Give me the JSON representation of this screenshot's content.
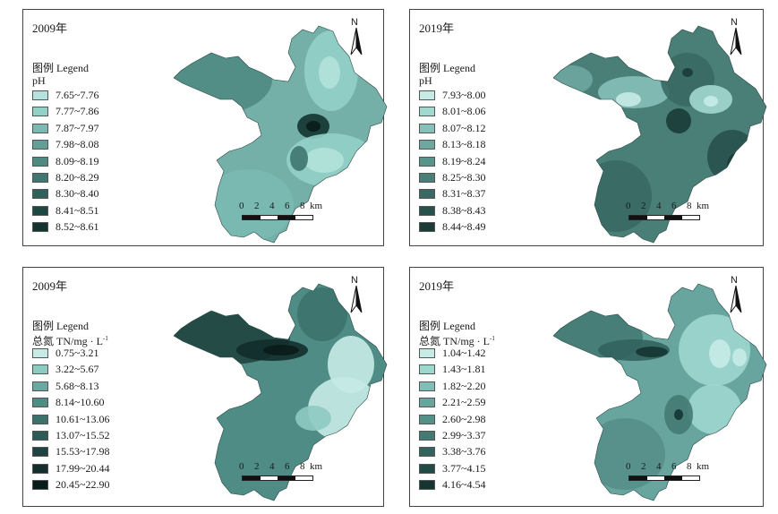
{
  "panels": [
    {
      "id": "ph2009",
      "year": "2009年",
      "legend_title_line1": "图例 Legend",
      "legend_title_line2": "pH",
      "classes": [
        "7.65~7.76",
        "7.77~7.86",
        "7.87~7.97",
        "7.98~8.08",
        "8.09~8.19",
        "8.20~8.29",
        "8.30~8.40",
        "8.41~8.51",
        "8.52~8.61"
      ],
      "colors": [
        "#b3e3dc",
        "#94d0c7",
        "#7bbab2",
        "#639f98",
        "#4f8a82",
        "#3f7670",
        "#2f605a",
        "#1f4742",
        "#133430"
      ],
      "dominant_color": "#74b0a8"
    },
    {
      "id": "ph2019",
      "year": "2019年",
      "legend_title_line1": "图例 Legend",
      "legend_title_line2": "pH",
      "classes": [
        "7.93~8.00",
        "8.01~8.06",
        "8.07~8.12",
        "8.13~8.18",
        "8.19~8.24",
        "8.25~8.30",
        "8.31~8.37",
        "8.38~8.43",
        "8.44~8.49"
      ],
      "colors": [
        "#c6ebe5",
        "#a3d8d0",
        "#86c0b8",
        "#6ea6a0",
        "#5a928c",
        "#4a7f78",
        "#396962",
        "#28514b",
        "#1a3c37"
      ],
      "dominant_color": "#4a7f78"
    },
    {
      "id": "tn2009",
      "year": "2009年",
      "legend_title_line1": "图例 Legend",
      "legend_title_line2": "总氮 TN/mg · L",
      "legend_title_sup": "-1",
      "classes": [
        "0.75~3.21",
        "3.22~5.67",
        "5.68~8.13",
        "8.14~10.60",
        "10.61~13.06",
        "13.07~15.52",
        "15.53~17.98",
        "17.99~20.44",
        "20.45~22.90"
      ],
      "colors": [
        "#c6ebe5",
        "#8ecac1",
        "#6aa9a1",
        "#4f8c85",
        "#3c726b",
        "#2c5a54",
        "#1f443f",
        "#132e2b",
        "#0a1c1a"
      ],
      "dominant_color": "#4f8c85"
    },
    {
      "id": "tn2019",
      "year": "2019年",
      "legend_title_line1": "图例 Legend",
      "legend_title_line2": "总氮 TN/mg · L",
      "legend_title_sup": "-1",
      "classes": [
        "1.04~1.42",
        "1.43~1.81",
        "1.82~2.20",
        "2.21~2.59",
        "2.60~2.98",
        "2.99~3.37",
        "3.38~3.76",
        "3.77~4.15",
        "4.16~4.54"
      ],
      "colors": [
        "#c6ebe5",
        "#9ed7ce",
        "#7fbfb7",
        "#68a59e",
        "#568f88",
        "#457a73",
        "#33635d",
        "#224a45",
        "#143532"
      ],
      "dominant_color": "#68a59e"
    }
  ],
  "north_label": "N",
  "scale": {
    "ticks": [
      "0",
      "2",
      "4",
      "6",
      "8"
    ],
    "unit": "km"
  }
}
